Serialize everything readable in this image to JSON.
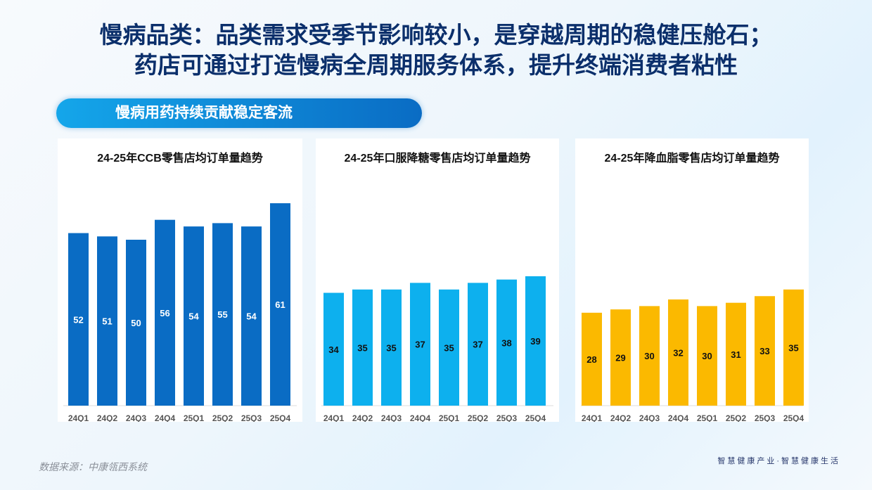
{
  "header": {
    "line1": "慢病品类：品类需求受季节影响较小，是穿越周期的稳健压舱石；",
    "line2": "药店可通过打造慢病全周期服务体系，提升终端消费者粘性"
  },
  "section_label": "慢病用药持续贡献稳定客流",
  "chart_data": [
    {
      "type": "bar",
      "title": "24-25年CCB零售店均订单量趋势",
      "categories": [
        "24Q1",
        "24Q2",
        "24Q3",
        "24Q4",
        "25Q1",
        "25Q2",
        "25Q3",
        "25Q4"
      ],
      "values": [
        52,
        51,
        50,
        56,
        54,
        55,
        54,
        61
      ],
      "color": "#0a6cc4"
    },
    {
      "type": "bar",
      "title": "24-25年口服降糖零售店均订单量趋势",
      "categories": [
        "24Q1",
        "24Q2",
        "24Q3",
        "24Q4",
        "25Q1",
        "25Q2",
        "25Q3",
        "25Q4"
      ],
      "values": [
        34,
        35,
        35,
        37,
        35,
        37,
        38,
        39
      ],
      "color": "#0db0ee"
    },
    {
      "type": "bar",
      "title": "24-25年降血脂零售店均订单量趋势",
      "categories": [
        "24Q1",
        "24Q2",
        "24Q3",
        "24Q4",
        "25Q1",
        "25Q2",
        "25Q3",
        "25Q4"
      ],
      "values": [
        28,
        29,
        30,
        32,
        30,
        31,
        33,
        35
      ],
      "color": "#fbb900"
    }
  ],
  "footer": {
    "source": "数据来源：中康瓴西系统",
    "slogan": "智慧健康产业·智慧健康生活"
  }
}
